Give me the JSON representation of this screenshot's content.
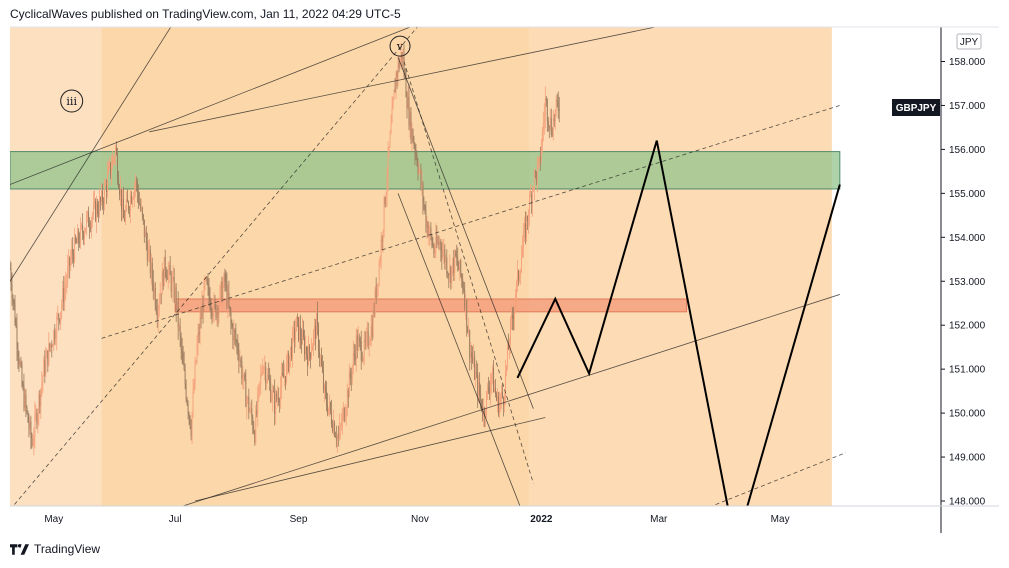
{
  "header": {
    "caption": "CyclicalWaves published on TradingView.com, Jan 11, 2022 04:29 UTC-5"
  },
  "footer": {
    "brand": "TradingView",
    "logo_icon": "tradingview-logo-icon"
  },
  "chart_data": {
    "type": "candlestick",
    "symbol": "GBPJPY",
    "currency": "JPY",
    "x_tick_labels": [
      "May",
      "Jul",
      "Sep",
      "Nov",
      "2022",
      "Mar",
      "May"
    ],
    "y_tick_labels": [
      "148.000",
      "149.000",
      "150.000",
      "151.000",
      "152.000",
      "153.000",
      "154.000",
      "155.000",
      "156.000",
      "157.000",
      "158.000"
    ],
    "ylim": [
      147.8,
      158.75
    ],
    "wave_labels": [
      "iii",
      "v"
    ],
    "colors": {
      "background_zone": "#fcdcb4",
      "bullish": "#f5a27c",
      "bearish": "#9a7a5e",
      "green_zone": "#93c48c",
      "red_zone": "#f4a07e",
      "projection": "#000000"
    },
    "price_path": [
      [
        "2021-04-09",
        153.3
      ],
      [
        "2021-04-15",
        150.6
      ],
      [
        "2021-04-20",
        149.3
      ],
      [
        "2021-04-26",
        151.0
      ],
      [
        "2021-05-04",
        152.3
      ],
      [
        "2021-05-10",
        153.6
      ],
      [
        "2021-05-17",
        154.3
      ],
      [
        "2021-05-25",
        154.8
      ],
      [
        "2021-06-01",
        156.0
      ],
      [
        "2021-06-05",
        154.4
      ],
      [
        "2021-06-11",
        155.3
      ],
      [
        "2021-06-16",
        154.0
      ],
      [
        "2021-06-22",
        152.4
      ],
      [
        "2021-06-26",
        153.4
      ],
      [
        "2021-07-01",
        152.7
      ],
      [
        "2021-07-05",
        151.0
      ],
      [
        "2021-07-09",
        149.7
      ],
      [
        "2021-07-12",
        151.5
      ],
      [
        "2021-07-16",
        152.9
      ],
      [
        "2021-07-21",
        152.3
      ],
      [
        "2021-07-26",
        153.0
      ],
      [
        "2021-07-29",
        152.0
      ],
      [
        "2021-08-02",
        151.4
      ],
      [
        "2021-08-05",
        150.5
      ],
      [
        "2021-08-10",
        149.6
      ],
      [
        "2021-08-14",
        151.2
      ],
      [
        "2021-08-20",
        150.2
      ],
      [
        "2021-08-26",
        151.0
      ],
      [
        "2021-08-31",
        152.0
      ],
      [
        "2021-09-06",
        151.3
      ],
      [
        "2021-09-10",
        152.0
      ],
      [
        "2021-09-14",
        150.4
      ],
      [
        "2021-09-17",
        150.0
      ],
      [
        "2021-09-21",
        149.4
      ],
      [
        "2021-09-25",
        150.3
      ],
      [
        "2021-09-30",
        151.6
      ],
      [
        "2021-10-04",
        151.4
      ],
      [
        "2021-10-08",
        152.0
      ],
      [
        "2021-10-12",
        153.6
      ],
      [
        "2021-10-16",
        155.7
      ],
      [
        "2021-10-20",
        157.7
      ],
      [
        "2021-10-23",
        158.2
      ],
      [
        "2021-10-27",
        156.6
      ],
      [
        "2021-10-31",
        155.7
      ],
      [
        "2021-11-04",
        154.4
      ],
      [
        "2021-11-08",
        153.7
      ],
      [
        "2021-11-11",
        153.9
      ],
      [
        "2021-11-16",
        153.2
      ],
      [
        "2021-11-19",
        153.5
      ],
      [
        "2021-11-23",
        152.9
      ],
      [
        "2021-11-26",
        151.5
      ],
      [
        "2021-11-30",
        150.6
      ],
      [
        "2021-12-03",
        150.0
      ],
      [
        "2021-12-07",
        150.9
      ],
      [
        "2021-12-10",
        150.2
      ],
      [
        "2021-12-13",
        150.4
      ],
      [
        "2021-12-16",
        151.7
      ],
      [
        "2021-12-20",
        153.0
      ],
      [
        "2021-12-24",
        154.2
      ],
      [
        "2021-12-28",
        155.3
      ],
      [
        "2021-12-31",
        155.6
      ],
      [
        "2022-01-03",
        157.1
      ],
      [
        "2022-01-06",
        156.5
      ],
      [
        "2022-01-10",
        157.1
      ]
    ],
    "projection_path": [
      [
        "2021-12-20",
        150.8
      ],
      [
        "2022-01-08",
        152.6
      ],
      [
        "2022-01-25",
        150.9
      ],
      [
        "2022-02-28",
        156.2
      ],
      [
        "2022-04-05",
        147.8
      ],
      [
        "2022-04-14",
        147.8
      ],
      [
        "2022-05-31",
        155.2
      ]
    ],
    "zones": [
      {
        "kind": "green",
        "from": "2021-04-09",
        "to": "2022-05-31",
        "low": 155.1,
        "high": 155.95
      },
      {
        "kind": "red",
        "from": "2021-07-01",
        "to": "2022-03-15",
        "low": 152.35,
        "high": 152.55
      }
    ],
    "trendlines": [
      {
        "style": "solid",
        "p1": [
          "2021-04-09",
          155.2
        ],
        "p2": [
          "2021-10-28",
          158.8
        ]
      },
      {
        "style": "solid",
        "p1": [
          "2021-04-09",
          153.0
        ],
        "p2": [
          "2021-06-29",
          158.8
        ]
      },
      {
        "style": "solid",
        "p1": [
          "2021-06-18",
          156.4
        ],
        "p2": [
          "2022-03-01",
          158.8
        ]
      },
      {
        "style": "solid",
        "p1": [
          "2021-07-11",
          148.0
        ],
        "p2": [
          "2022-01-03",
          149.9
        ]
      },
      {
        "style": "solid",
        "p1": [
          "2021-10-21",
          158.1
        ],
        "p2": [
          "2021-12-28",
          150.1
        ]
      },
      {
        "style": "solid",
        "p1": [
          "2021-10-21",
          155.0
        ],
        "p2": [
          "2021-12-22",
          147.8
        ]
      },
      {
        "style": "solid",
        "p1": [
          "2021-06-29",
          147.8
        ],
        "p2": [
          "2022-05-31",
          152.7
        ]
      },
      {
        "style": "dashed",
        "p1": [
          "2021-05-25",
          151.7
        ],
        "p2": [
          "2022-05-31",
          157.0
        ]
      },
      {
        "style": "dashed",
        "p1": [
          "2021-04-09",
          147.8
        ],
        "p2": [
          "2021-10-31",
          158.8
        ]
      },
      {
        "style": "dashed",
        "p1": [
          "2021-10-24",
          158.0
        ],
        "p2": [
          "2021-12-28",
          148.4
        ]
      },
      {
        "style": "dashed",
        "p1": [
          "2022-03-23",
          147.8
        ],
        "p2": [
          "2022-06-03",
          149.1
        ]
      }
    ],
    "wave_label_positions": [
      {
        "label": "iii",
        "date": "2021-05-10",
        "price": 157.1
      },
      {
        "label": "v",
        "date": "2021-10-22",
        "price": 158.35
      }
    ]
  }
}
